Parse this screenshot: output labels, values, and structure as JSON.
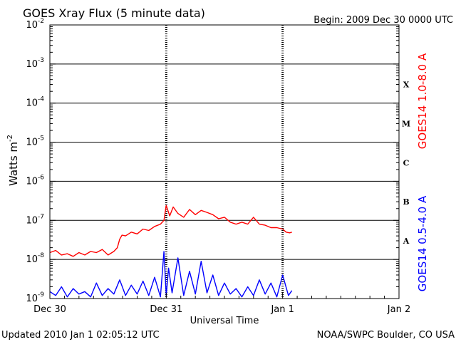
{
  "chart_data": {
    "type": "line",
    "title": "GOES Xray Flux (5 minute data)",
    "begin_label": "Begin:  2009 Dec 30 0000 UTC",
    "xlabel": "Universal Time",
    "ylabel": "Watts m",
    "ylabel_superscript": "-2",
    "footer_left": "Updated 2010 Jan  1 02:05:12 UTC",
    "footer_right": "NOAA/SWPC Boulder, CO USA",
    "x_ticks": [
      {
        "label": "Dec 30",
        "day": 0
      },
      {
        "label": "Dec 31",
        "day": 1
      },
      {
        "label": "Jan 1",
        "day": 2
      },
      {
        "label": "Jan 2",
        "day": 3
      }
    ],
    "y_scale": "log",
    "y_range": [
      1e-09,
      0.01
    ],
    "y_ticks": [
      {
        "mantissa": "10",
        "exp": "-2",
        "value": 0.01
      },
      {
        "mantissa": "10",
        "exp": "-3",
        "value": 0.001
      },
      {
        "mantissa": "10",
        "exp": "-4",
        "value": 0.0001
      },
      {
        "mantissa": "10",
        "exp": "-5",
        "value": 1e-05
      },
      {
        "mantissa": "10",
        "exp": "-6",
        "value": 1e-06
      },
      {
        "mantissa": "10",
        "exp": "-7",
        "value": 1e-07
      },
      {
        "mantissa": "10",
        "exp": "-8",
        "value": 1e-08
      },
      {
        "mantissa": "10",
        "exp": "-9",
        "value": 1e-09
      }
    ],
    "flare_classes": [
      {
        "label": "X",
        "value": 0.0003
      },
      {
        "label": "M",
        "value": 3e-05
      },
      {
        "label": "C",
        "value": 3e-06
      },
      {
        "label": "B",
        "value": 3e-07
      },
      {
        "label": "A",
        "value": 3e-08
      }
    ],
    "grid": true,
    "series": [
      {
        "name": "GOES14 1.0-8.0 A",
        "color": "#ff0000",
        "days": [
          0.0,
          0.05,
          0.1,
          0.15,
          0.2,
          0.25,
          0.3,
          0.35,
          0.4,
          0.45,
          0.5,
          0.55,
          0.58,
          0.6,
          0.62,
          0.65,
          0.7,
          0.75,
          0.8,
          0.85,
          0.9,
          0.95,
          0.98,
          1.0,
          1.03,
          1.06,
          1.1,
          1.15,
          1.2,
          1.25,
          1.3,
          1.35,
          1.4,
          1.45,
          1.5,
          1.55,
          1.6,
          1.65,
          1.7,
          1.75,
          1.8,
          1.85,
          1.9,
          1.95,
          2.0,
          2.03,
          2.06,
          2.08
        ],
        "values": [
          1.5e-08,
          1.7e-08,
          1.3e-08,
          1.4e-08,
          1.2e-08,
          1.5e-08,
          1.3e-08,
          1.6e-08,
          1.5e-08,
          1.8e-08,
          1.3e-08,
          1.6e-08,
          2e-08,
          3.3e-08,
          4.2e-08,
          4e-08,
          5e-08,
          4.5e-08,
          6e-08,
          5.5e-08,
          7e-08,
          8e-08,
          1e-07,
          2.4e-07,
          1.3e-07,
          2.2e-07,
          1.5e-07,
          1.2e-07,
          1.9e-07,
          1.4e-07,
          1.8e-07,
          1.6e-07,
          1.4e-07,
          1.1e-07,
          1.2e-07,
          9e-08,
          8e-08,
          9e-08,
          8e-08,
          1.2e-07,
          8e-08,
          7.5e-08,
          6.5e-08,
          6.5e-08,
          6e-08,
          5e-08,
          4.8e-08,
          5e-08
        ]
      },
      {
        "name": "GOES14 0.5-4.0 A",
        "color": "#0000ff",
        "days": [
          0.0,
          0.05,
          0.1,
          0.15,
          0.2,
          0.25,
          0.3,
          0.35,
          0.4,
          0.45,
          0.5,
          0.55,
          0.6,
          0.65,
          0.7,
          0.75,
          0.8,
          0.85,
          0.9,
          0.95,
          0.98,
          1.0,
          1.02,
          1.05,
          1.1,
          1.15,
          1.2,
          1.25,
          1.3,
          1.35,
          1.4,
          1.45,
          1.5,
          1.55,
          1.6,
          1.65,
          1.7,
          1.75,
          1.8,
          1.85,
          1.9,
          1.95,
          2.0,
          2.05,
          2.08
        ],
        "values": [
          1.5e-09,
          1.2e-09,
          2e-09,
          1.1e-09,
          1.8e-09,
          1.3e-09,
          1.5e-09,
          1.1e-09,
          2.5e-09,
          1.2e-09,
          1.8e-09,
          1.3e-09,
          3e-09,
          1.2e-09,
          2.2e-09,
          1.3e-09,
          2.8e-09,
          1.2e-09,
          3.5e-09,
          1.1e-09,
          1.6e-08,
          1.2e-09,
          6e-09,
          1.4e-09,
          1.1e-08,
          1.2e-09,
          5e-09,
          1.3e-09,
          9e-09,
          1.4e-09,
          4e-09,
          1.2e-09,
          2.5e-09,
          1.3e-09,
          1.8e-09,
          1.1e-09,
          2e-09,
          1.2e-09,
          3e-09,
          1.3e-09,
          2.5e-09,
          1.1e-09,
          4e-09,
          1.2e-09,
          1.6e-09
        ]
      }
    ]
  }
}
